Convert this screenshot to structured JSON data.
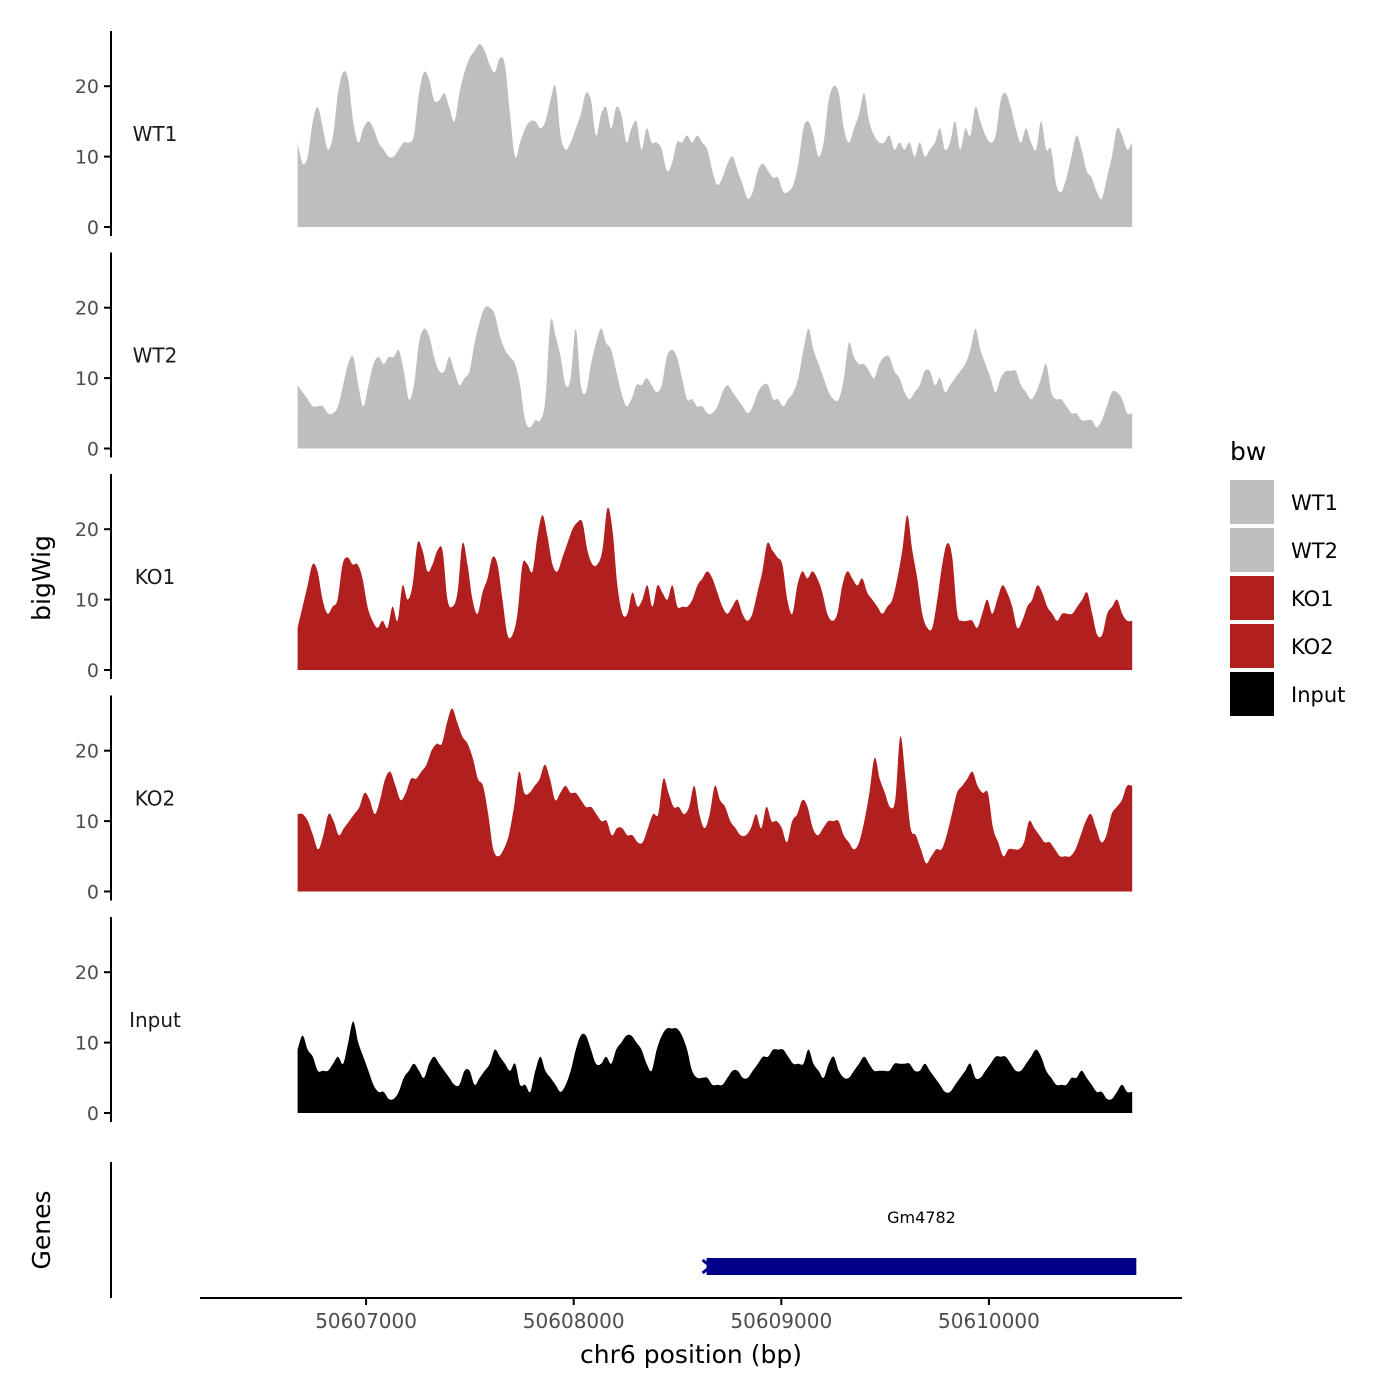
{
  "chart_data": {
    "type": "area",
    "chromosome": "chr6",
    "xlabel": "chr6 position (bp)",
    "ylabel": "bigWig",
    "genes_label": "Genes",
    "xlim": [
      50606200,
      50610930
    ],
    "signal_range": [
      50606670,
      50610690
    ],
    "x_ticks": [
      50607000,
      50608000,
      50609000,
      50610000
    ],
    "x_tick_labels": [
      "50607000",
      "50608000",
      "50609000",
      "50610000"
    ],
    "ylim": [
      0,
      28
    ],
    "y_ticks": [
      0,
      10,
      20
    ],
    "y_tick_labels": [
      "0",
      "10",
      "20"
    ],
    "legend": {
      "title": "bw",
      "entries": [
        {
          "name": "WT1",
          "color": "#bebebe"
        },
        {
          "name": "WT2",
          "color": "#bebebe"
        },
        {
          "name": "KO1",
          "color": "#b21f1f"
        },
        {
          "name": "KO2",
          "color": "#b21f1f"
        },
        {
          "name": "Input",
          "color": "#000000"
        }
      ]
    },
    "series": [
      {
        "name": "WT1",
        "color": "#bebebe",
        "values": [
          12,
          9,
          10,
          15,
          17,
          14,
          11,
          13,
          19,
          22,
          21,
          15,
          12,
          14,
          15,
          14,
          12,
          11,
          10,
          10,
          11,
          12,
          12,
          13,
          19,
          22,
          21,
          18,
          18,
          19,
          17,
          15,
          19,
          22,
          24,
          25,
          26,
          25,
          23,
          22,
          24,
          23,
          16,
          10,
          12,
          14,
          15,
          15,
          14,
          15,
          18,
          20,
          13,
          11,
          12,
          14,
          16,
          19,
          18,
          13,
          16,
          17,
          14,
          17,
          16,
          12,
          14,
          15,
          11,
          14,
          12,
          12,
          11,
          8,
          9,
          12,
          12,
          13,
          12,
          13,
          12,
          11,
          8,
          6,
          7,
          9,
          10,
          8,
          6,
          4,
          5,
          8,
          9,
          8,
          7,
          7,
          5,
          5,
          6,
          9,
          14,
          15,
          13,
          10,
          12,
          18,
          20,
          19,
          14,
          12,
          14,
          16,
          19,
          15,
          13,
          12,
          12,
          13,
          11,
          12,
          11,
          12,
          10,
          12,
          10,
          11,
          12,
          14,
          11,
          12,
          15,
          11,
          14,
          13,
          17,
          15,
          13,
          12,
          13,
          18,
          19,
          17,
          14,
          12,
          14,
          12,
          11,
          15,
          11,
          11,
          6,
          5,
          7,
          10,
          13,
          11,
          8,
          7,
          5,
          4,
          7,
          10,
          14,
          13,
          11,
          12
        ]
      },
      {
        "name": "WT2",
        "color": "#bebebe",
        "values": [
          9,
          8,
          7,
          6,
          6,
          6,
          5,
          5,
          6,
          9,
          12,
          13,
          9,
          6,
          9,
          12,
          13,
          12,
          13,
          13,
          14,
          11,
          7,
          9,
          15,
          17,
          16,
          13,
          11,
          11,
          13,
          11,
          9,
          10,
          11,
          15,
          18,
          20,
          20,
          19,
          16,
          14,
          13,
          12,
          9,
          4,
          3,
          4,
          4,
          7,
          18,
          16,
          13,
          9,
          10,
          17,
          9,
          8,
          12,
          15,
          17,
          15,
          14,
          11,
          8,
          6,
          7,
          9,
          9,
          10,
          9,
          8,
          9,
          13,
          14,
          13,
          10,
          7,
          7,
          6,
          6,
          5,
          5,
          6,
          8,
          9,
          8,
          7,
          6,
          5,
          6,
          8,
          9,
          9,
          7,
          7,
          6,
          7,
          8,
          10,
          14,
          17,
          14,
          12,
          10,
          8,
          7,
          7,
          10,
          15,
          13,
          12,
          12,
          11,
          10,
          12,
          13,
          13,
          11,
          10,
          8,
          7,
          8,
          9,
          11,
          11,
          9,
          10,
          8,
          9,
          10,
          11,
          12,
          14,
          17,
          14,
          12,
          10,
          8,
          10,
          11,
          11,
          11,
          9,
          8,
          7,
          8,
          10,
          12,
          8,
          7,
          7,
          6,
          5,
          5,
          4,
          4,
          4,
          3,
          4,
          6,
          8,
          8,
          7,
          5,
          5
        ]
      },
      {
        "name": "KO1",
        "color": "#b21f1f",
        "values": [
          6,
          9,
          12,
          15,
          14,
          10,
          8,
          9,
          10,
          15,
          16,
          15,
          15,
          13,
          9,
          7,
          6,
          7,
          6,
          9,
          7,
          12,
          10,
          12,
          18,
          17,
          14,
          15,
          17,
          17,
          10,
          9,
          11,
          18,
          15,
          10,
          8,
          11,
          13,
          16,
          15,
          10,
          5,
          5,
          8,
          15,
          15,
          14,
          19,
          22,
          19,
          15,
          14,
          16,
          18,
          20,
          21,
          21,
          17,
          15,
          15,
          17,
          23,
          20,
          12,
          8,
          8,
          11,
          9,
          10,
          12,
          9,
          12,
          11,
          10,
          12,
          9,
          9,
          9,
          10,
          12,
          13,
          14,
          13,
          11,
          9,
          8,
          9,
          10,
          8,
          7,
          8,
          11,
          14,
          18,
          17,
          16,
          15,
          10,
          8,
          12,
          14,
          13,
          14,
          13,
          11,
          8,
          7,
          8,
          12,
          14,
          13,
          12,
          13,
          11,
          10,
          9,
          8,
          9,
          10,
          13,
          17,
          22,
          17,
          13,
          8,
          6,
          6,
          10,
          15,
          18,
          16,
          8,
          7,
          7,
          7,
          6,
          8,
          10,
          8,
          10,
          12,
          11,
          9,
          6,
          7,
          9,
          10,
          12,
          11,
          9,
          8,
          7,
          8,
          8,
          8,
          9,
          10,
          11,
          8,
          5,
          5,
          8,
          9,
          10,
          8,
          7,
          7
        ]
      },
      {
        "name": "KO2",
        "color": "#b21f1f",
        "values": [
          11,
          11,
          10,
          8,
          6,
          8,
          11,
          10,
          8,
          9,
          10,
          11,
          12,
          14,
          13,
          11,
          13,
          16,
          17,
          15,
          13,
          14,
          16,
          16,
          17,
          18,
          20,
          21,
          21,
          24,
          26,
          24,
          22,
          21,
          19,
          16,
          15,
          11,
          6,
          5,
          6,
          8,
          12,
          17,
          14,
          14,
          15,
          16,
          18,
          16,
          13,
          14,
          15,
          14,
          14,
          13,
          12,
          12,
          11,
          10,
          10,
          8,
          9,
          9,
          8,
          8,
          7,
          7,
          9,
          11,
          11,
          16,
          14,
          12,
          12,
          11,
          12,
          15,
          11,
          9,
          11,
          15,
          13,
          12,
          10,
          9,
          8,
          8,
          9,
          11,
          9,
          12,
          10,
          10,
          9,
          7,
          10,
          11,
          13,
          12,
          9,
          8,
          9,
          10,
          10,
          10,
          8,
          7,
          6,
          7,
          10,
          14,
          19,
          16,
          14,
          12,
          13,
          22,
          16,
          9,
          8,
          6,
          4,
          5,
          6,
          6,
          8,
          11,
          14,
          15,
          16,
          17,
          15,
          14,
          14,
          9,
          7,
          5,
          6,
          6,
          6,
          7,
          10,
          9,
          8,
          7,
          7,
          6,
          5,
          5,
          5,
          6,
          8,
          10,
          11,
          9,
          7,
          8,
          11,
          12,
          13,
          15,
          15
        ]
      },
      {
        "name": "Input",
        "color": "#000000",
        "values": [
          9,
          11,
          9,
          8,
          6,
          6,
          6,
          7,
          8,
          7,
          10,
          13,
          10,
          8,
          6,
          4,
          3,
          3,
          2,
          2,
          3,
          5,
          6,
          7,
          6,
          5,
          7,
          8,
          7,
          6,
          5,
          4,
          4,
          6,
          6,
          4,
          5,
          6,
          7,
          9,
          8,
          7,
          6,
          7,
          4,
          4,
          3,
          6,
          8,
          6,
          5,
          4,
          3,
          4,
          6,
          9,
          11,
          11,
          9,
          7,
          7,
          8,
          7,
          9,
          10,
          11,
          11,
          10,
          9,
          7,
          6,
          9,
          11,
          12,
          12,
          12,
          11,
          9,
          6,
          5,
          5,
          5,
          4,
          4,
          4,
          5,
          6,
          6,
          5,
          5,
          6,
          7,
          8,
          8,
          9,
          9,
          9,
          8,
          7,
          7,
          7,
          9,
          7,
          6,
          5,
          7,
          8,
          6,
          5,
          5,
          6,
          7,
          8,
          7,
          6,
          6,
          6,
          6,
          7,
          7,
          7,
          7,
          6,
          6,
          7,
          6,
          5,
          4,
          3,
          3,
          4,
          5,
          6,
          7,
          5,
          5,
          6,
          7,
          8,
          8,
          8,
          7,
          6,
          6,
          7,
          8,
          9,
          8,
          6,
          5,
          4,
          4,
          4,
          5,
          5,
          6,
          5,
          4,
          3,
          3,
          2,
          2,
          3,
          4,
          3,
          3
        ]
      }
    ],
    "genes": [
      {
        "name": "Gm4782",
        "start": 50608640,
        "end": 50610710,
        "strand": "-",
        "color": "#00008b"
      }
    ]
  }
}
